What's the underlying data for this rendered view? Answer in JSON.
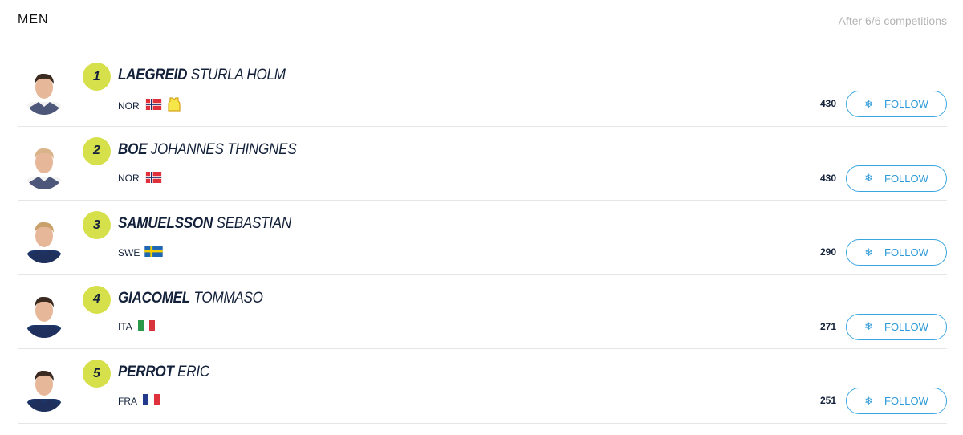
{
  "header": {
    "title": "MEN",
    "subtitle": "After 6/6 competitions"
  },
  "accent": "#d6e04a",
  "button_color": "#2f9ad8",
  "athletes": [
    {
      "rank": "1",
      "last": "LAEGREID",
      "first": "STURLA HOLM",
      "nation": "NOR",
      "flag": "norway-flag",
      "points": "430",
      "bib": "yellow-bib-icon",
      "follow": "FOLLOW"
    },
    {
      "rank": "2",
      "last": "BOE",
      "first": "JOHANNES THINGNES",
      "nation": "NOR",
      "flag": "norway-flag",
      "points": "430",
      "follow": "FOLLOW"
    },
    {
      "rank": "3",
      "last": "SAMUELSSON",
      "first": "SEBASTIAN",
      "nation": "SWE",
      "flag": "sweden-flag",
      "points": "290",
      "follow": "FOLLOW"
    },
    {
      "rank": "4",
      "last": "GIACOMEL",
      "first": "TOMMASO",
      "nation": "ITA",
      "flag": "italy-flag",
      "points": "271",
      "follow": "FOLLOW"
    },
    {
      "rank": "5",
      "last": "PERROT",
      "first": "ERIC",
      "nation": "FRA",
      "flag": "france-flag",
      "points": "251",
      "follow": "FOLLOW"
    }
  ]
}
